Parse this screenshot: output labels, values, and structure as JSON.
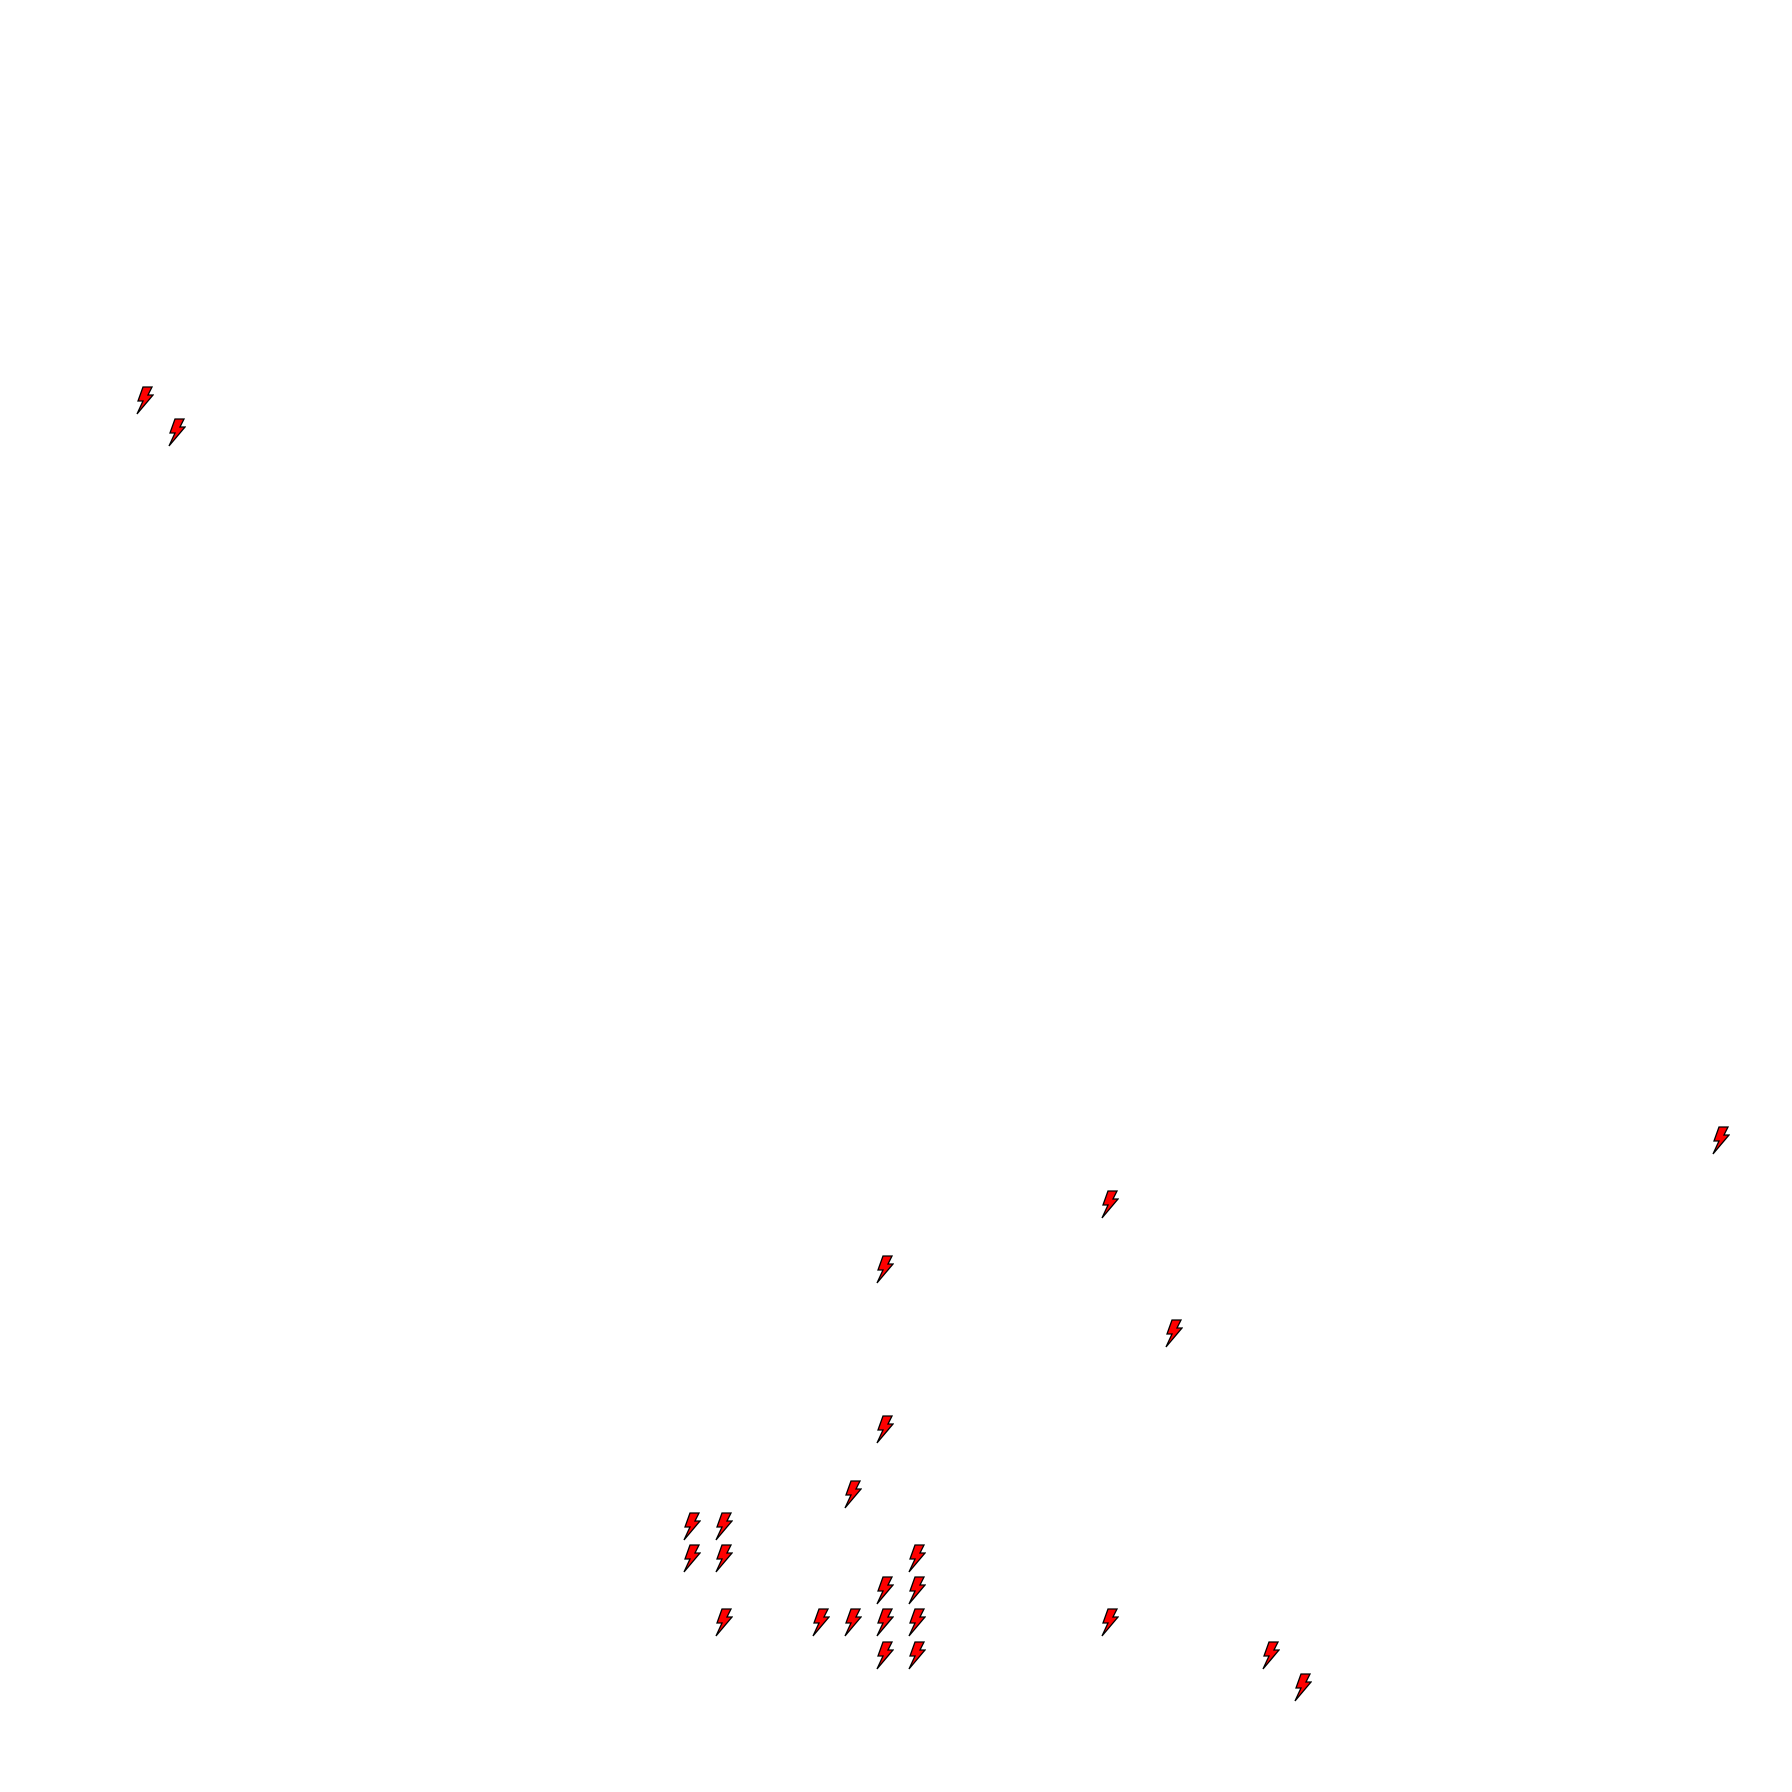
{
  "icons": {
    "name": "lightning-bolt-icon",
    "fill_color": "#ff0000",
    "stroke_color": "#000000",
    "count": 25
  }
}
